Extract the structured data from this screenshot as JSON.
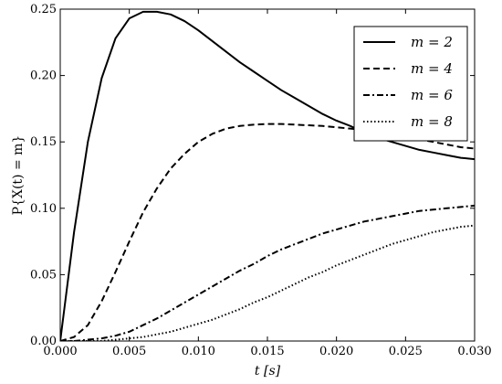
{
  "chart_data": {
    "type": "line",
    "title": "",
    "xlabel": "t [s]",
    "ylabel": "P{X(t) = m}",
    "xlim": [
      0.0,
      0.03
    ],
    "ylim": [
      0.0,
      0.25
    ],
    "xticks": [
      "0.000",
      "0.005",
      "0.010",
      "0.015",
      "0.020",
      "0.025",
      "0.030"
    ],
    "yticks": [
      "0.00",
      "0.05",
      "0.10",
      "0.15",
      "0.20",
      "0.25"
    ],
    "grid": false,
    "legend_position": "top-right",
    "x": [
      0.0,
      0.001,
      0.002,
      0.003,
      0.004,
      0.005,
      0.006,
      0.007,
      0.008,
      0.009,
      0.01,
      0.011,
      0.012,
      0.013,
      0.014,
      0.015,
      0.016,
      0.017,
      0.018,
      0.019,
      0.02,
      0.021,
      0.022,
      0.023,
      0.024,
      0.025,
      0.026,
      0.027,
      0.028,
      0.029,
      0.03
    ],
    "series": [
      {
        "name": "m = 2",
        "dash": "solid",
        "values": [
          0.0,
          0.082,
          0.15,
          0.198,
          0.228,
          0.243,
          0.248,
          0.248,
          0.246,
          0.241,
          0.234,
          0.226,
          0.218,
          0.21,
          0.203,
          0.196,
          0.189,
          0.183,
          0.177,
          0.171,
          0.166,
          0.162,
          0.157,
          0.153,
          0.15,
          0.147,
          0.144,
          0.142,
          0.14,
          0.138,
          0.137
        ]
      },
      {
        "name": "m = 4",
        "dash": "dashed",
        "values": [
          0.0,
          0.003,
          0.012,
          0.03,
          0.052,
          0.075,
          0.097,
          0.115,
          0.13,
          0.141,
          0.15,
          0.156,
          0.16,
          0.162,
          0.163,
          0.1635,
          0.1635,
          0.163,
          0.1625,
          0.162,
          0.161,
          0.16,
          0.159,
          0.157,
          0.156,
          0.154,
          0.152,
          0.15,
          0.148,
          0.146,
          0.145
        ]
      },
      {
        "name": "m = 6",
        "dash": "dashdot",
        "values": [
          0.0,
          0.0,
          0.001,
          0.002,
          0.004,
          0.007,
          0.012,
          0.017,
          0.023,
          0.029,
          0.035,
          0.041,
          0.047,
          0.053,
          0.058,
          0.064,
          0.069,
          0.073,
          0.077,
          0.081,
          0.084,
          0.087,
          0.09,
          0.092,
          0.094,
          0.096,
          0.098,
          0.099,
          0.1,
          0.101,
          0.102
        ]
      },
      {
        "name": "m = 8",
        "dash": "dotted",
        "values": [
          0.0,
          0.0,
          0.0,
          0.0,
          0.001,
          0.002,
          0.003,
          0.005,
          0.007,
          0.01,
          0.013,
          0.016,
          0.02,
          0.024,
          0.029,
          0.033,
          0.038,
          0.043,
          0.048,
          0.052,
          0.057,
          0.061,
          0.065,
          0.069,
          0.073,
          0.076,
          0.079,
          0.082,
          0.084,
          0.086,
          0.087
        ]
      }
    ]
  }
}
